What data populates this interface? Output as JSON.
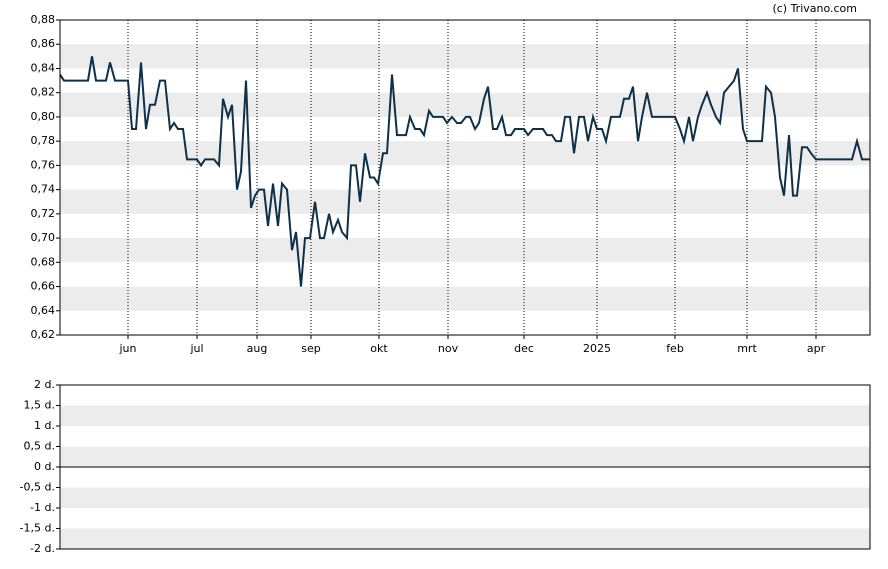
{
  "credit": "(c) Trivano.com",
  "chart_data": [
    {
      "type": "line",
      "color": "#0e3049",
      "xlim": [
        0,
        810
      ],
      "xticks": [
        {
          "value": 68,
          "label": "jun"
        },
        {
          "value": 137,
          "label": "jul"
        },
        {
          "value": 197,
          "label": "aug"
        },
        {
          "value": 251,
          "label": "sep"
        },
        {
          "value": 319,
          "label": "okt"
        },
        {
          "value": 388,
          "label": "nov"
        },
        {
          "value": 464,
          "label": "dec"
        },
        {
          "value": 537,
          "label": "2025"
        },
        {
          "value": 615,
          "label": "feb"
        },
        {
          "value": 687,
          "label": "mrt"
        },
        {
          "value": 756,
          "label": "apr"
        }
      ],
      "ylim": [
        0.62,
        0.88
      ],
      "yticks": [
        {
          "value": 0.62,
          "label": "0,62"
        },
        {
          "value": 0.64,
          "label": "0,64"
        },
        {
          "value": 0.66,
          "label": "0,66"
        },
        {
          "value": 0.68,
          "label": "0,68"
        },
        {
          "value": 0.7,
          "label": "0,70"
        },
        {
          "value": 0.72,
          "label": "0,72"
        },
        {
          "value": 0.74,
          "label": "0,74"
        },
        {
          "value": 0.76,
          "label": "0,76"
        },
        {
          "value": 0.78,
          "label": "0,78"
        },
        {
          "value": 0.8,
          "label": "0,80"
        },
        {
          "value": 0.82,
          "label": "0,82"
        },
        {
          "value": 0.84,
          "label": "0,84"
        },
        {
          "value": 0.86,
          "label": "0,86"
        },
        {
          "value": 0.88,
          "label": "0,88"
        }
      ],
      "x": [
        0,
        4,
        28,
        32,
        36,
        46,
        50,
        55,
        68,
        72,
        76,
        81,
        86,
        90,
        95,
        100,
        105,
        110,
        114,
        118,
        123,
        127,
        137,
        141,
        145,
        154,
        159,
        163,
        168,
        172,
        177,
        181,
        186,
        191,
        195,
        199,
        204,
        208,
        213,
        218,
        222,
        227,
        232,
        236,
        241,
        245,
        250,
        255,
        260,
        264,
        269,
        273,
        278,
        282,
        287,
        291,
        296,
        300,
        305,
        310,
        314,
        318,
        323,
        327,
        332,
        337,
        346,
        350,
        355,
        360,
        364,
        369,
        373,
        383,
        387,
        392,
        397,
        401,
        406,
        410,
        415,
        419,
        424,
        428,
        433,
        437,
        442,
        446,
        451,
        455,
        464,
        468,
        473,
        483,
        487,
        492,
        496,
        501,
        505,
        510,
        514,
        519,
        524,
        528,
        533,
        537,
        542,
        546,
        551,
        560,
        564,
        569,
        573,
        578,
        582,
        587,
        592,
        615,
        620,
        624,
        629,
        633,
        638,
        642,
        647,
        651,
        656,
        660,
        664,
        669,
        674,
        678,
        683,
        687,
        702,
        706,
        711,
        715,
        720,
        724,
        729,
        733,
        737,
        742,
        747,
        751,
        756,
        792,
        797,
        802,
        810
      ],
      "values": [
        0.835,
        0.83,
        0.83,
        0.85,
        0.83,
        0.83,
        0.845,
        0.83,
        0.83,
        0.79,
        0.79,
        0.845,
        0.79,
        0.81,
        0.81,
        0.83,
        0.83,
        0.79,
        0.795,
        0.79,
        0.79,
        0.765,
        0.765,
        0.76,
        0.765,
        0.765,
        0.76,
        0.815,
        0.8,
        0.81,
        0.74,
        0.755,
        0.83,
        0.725,
        0.735,
        0.74,
        0.74,
        0.71,
        0.745,
        0.71,
        0.745,
        0.74,
        0.69,
        0.705,
        0.66,
        0.7,
        0.7,
        0.73,
        0.7,
        0.7,
        0.72,
        0.705,
        0.715,
        0.705,
        0.7,
        0.76,
        0.76,
        0.73,
        0.77,
        0.75,
        0.75,
        0.745,
        0.77,
        0.77,
        0.835,
        0.785,
        0.785,
        0.8,
        0.79,
        0.79,
        0.785,
        0.805,
        0.8,
        0.8,
        0.795,
        0.8,
        0.795,
        0.795,
        0.8,
        0.8,
        0.79,
        0.795,
        0.815,
        0.825,
        0.79,
        0.79,
        0.8,
        0.785,
        0.785,
        0.79,
        0.79,
        0.785,
        0.79,
        0.79,
        0.785,
        0.785,
        0.78,
        0.78,
        0.8,
        0.8,
        0.77,
        0.8,
        0.8,
        0.78,
        0.8,
        0.79,
        0.79,
        0.78,
        0.8,
        0.8,
        0.815,
        0.815,
        0.825,
        0.78,
        0.8,
        0.82,
        0.8,
        0.8,
        0.79,
        0.78,
        0.8,
        0.78,
        0.8,
        0.81,
        0.82,
        0.81,
        0.8,
        0.795,
        0.82,
        0.825,
        0.83,
        0.84,
        0.79,
        0.78,
        0.78,
        0.825,
        0.82,
        0.8,
        0.75,
        0.735,
        0.785,
        0.735,
        0.735,
        0.775,
        0.775,
        0.77,
        0.765,
        0.765,
        0.78,
        0.765,
        0.765
      ]
    },
    {
      "type": "empty",
      "ylim": [
        -2,
        2
      ],
      "yticks": [
        {
          "value": -2,
          "label": "-2 d."
        },
        {
          "value": -1.5,
          "label": "-1,5 d."
        },
        {
          "value": -1,
          "label": "-1 d."
        },
        {
          "value": -0.5,
          "label": "-0,5 d."
        },
        {
          "value": 0,
          "label": "0 d."
        },
        {
          "value": 0.5,
          "label": "0,5 d."
        },
        {
          "value": 1,
          "label": "1 d."
        },
        {
          "value": 1.5,
          "label": "1,5 d."
        },
        {
          "value": 2,
          "label": "2 d."
        }
      ]
    }
  ]
}
